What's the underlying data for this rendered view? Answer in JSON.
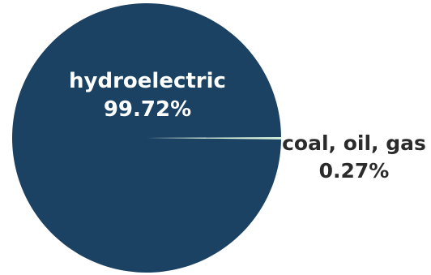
{
  "chart_data": {
    "type": "pie",
    "slices": [
      {
        "label": "hydroelectric",
        "value": 99.72,
        "display": "99.72%",
        "color": "#1b4263"
      },
      {
        "label": "coal, oil, gas",
        "value": 0.27,
        "display": "0.27%",
        "color": "#d4efd8"
      }
    ]
  }
}
